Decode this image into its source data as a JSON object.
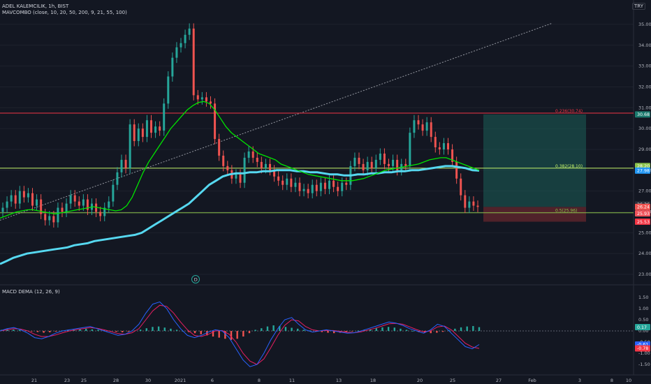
{
  "header": {
    "symbol_line": "ADEL KALEMCILIK, 1h, BIST",
    "ma_line": "MAVCOMBO (close, 10, 20, 50, 200, 9, 21, 55, 100)",
    "currency": "TRY"
  },
  "macd_label": "MACD DEMA (12, 26, 9)",
  "event_marker": "D",
  "x_ticks": [
    "21",
    "23",
    "25",
    "28",
    "30",
    "2021",
    "6",
    "8",
    "11",
    "13",
    "18",
    "20",
    "25",
    "27",
    "Feb",
    "3",
    "8",
    "10"
  ],
  "colors": {
    "background": "#131722",
    "up": "#26a69a",
    "down": "#ef5350",
    "ma_fast": "#00e600",
    "ma_slow": "#56d8f0",
    "fib_236": "#f23645",
    "fib_382": "#c6f56b",
    "fib_50": "#8bc34a",
    "macd_line": "#2962ff",
    "signal_line": "#e91e63"
  },
  "chart_data": [
    {
      "type": "candlestick",
      "title": "ADEL KALEMCILIK, 1h, BIST",
      "yaxis": {
        "ticks": [
          "35.00",
          "34.00",
          "33.00",
          "32.00",
          "31.00",
          "30.00",
          "29.00",
          "28.00",
          "27.00",
          "26.00",
          "25.00",
          "24.00",
          "23.00"
        ],
        "range": [
          22.6,
          35.5
        ]
      },
      "fib_levels": [
        {
          "label": "0.236(30.74)",
          "value": 30.74
        },
        {
          "label": "0.382(28.10)",
          "value": 28.1
        },
        {
          "label": "0.5(25.96)",
          "value": 25.96
        }
      ],
      "price_labels": [
        {
          "text": "30.68",
          "value": 30.68,
          "color": "#1b7a6e"
        },
        {
          "text": "28.20",
          "value": 28.2,
          "color": "#8bc34a"
        },
        {
          "text": "27.98",
          "value": 27.98,
          "color": "#2196f3"
        },
        {
          "text": "26.36",
          "value": 26.36,
          "color": "#2a2e39"
        },
        {
          "text": "26.24",
          "value": 26.24,
          "color": "#ef5350"
        },
        {
          "text": "25.93",
          "value": 25.93,
          "color": "#f0525a"
        },
        {
          "text": "25.53",
          "value": 25.53,
          "color": "#f23645"
        }
      ],
      "position": {
        "entry": 26.24,
        "target": 30.68,
        "stop": 25.53
      },
      "close_series": [
        26.2,
        26.5,
        26.8,
        26.4,
        27.0,
        26.7,
        26.9,
        26.3,
        26.6,
        25.9,
        25.6,
        25.8,
        25.5,
        26.2,
        26.0,
        26.4,
        26.8,
        26.5,
        26.3,
        26.6,
        26.1,
        26.4,
        26.0,
        25.8,
        26.2,
        26.5,
        27.3,
        27.9,
        28.5,
        28.1,
        30.2,
        29.4,
        30.0,
        29.6,
        30.4,
        29.8,
        30.1,
        29.9,
        31.2,
        32.5,
        33.4,
        33.9,
        34.1,
        34.5,
        34.8,
        31.6,
        31.4,
        31.5,
        31.3,
        31.2,
        29.5,
        28.7,
        28.2,
        28.0,
        27.6,
        27.8,
        27.4,
        28.6,
        28.9,
        28.6,
        28.4,
        28.1,
        28.3,
        28.0,
        27.7,
        27.5,
        27.3,
        27.6,
        27.2,
        27.4,
        27.0,
        27.1,
        26.9,
        27.3,
        27.0,
        27.4,
        27.1,
        27.5,
        27.2,
        27.0,
        27.4,
        27.3,
        28.2,
        28.6,
        28.3,
        28.0,
        28.4,
        28.1,
        28.5,
        28.8,
        28.3,
        28.2,
        28.5,
        28.0,
        28.3,
        28.2,
        29.8,
        30.4,
        30.2,
        29.9,
        30.3,
        29.6,
        29.1,
        29.0,
        29.3,
        29.0,
        28.4,
        27.6,
        26.8,
        26.2,
        26.5,
        26.3,
        26.24
      ],
      "ma_fast_series": [
        25.7,
        25.8,
        25.9,
        26.0,
        26.05,
        26.1,
        26.1,
        26.05,
        26.0,
        25.95,
        25.9,
        25.95,
        26.0,
        26.05,
        26.1,
        26.15,
        26.2,
        26.25,
        26.2,
        26.15,
        26.1,
        26.05,
        26.1,
        26.3,
        26.7,
        27.3,
        27.9,
        28.4,
        28.8,
        29.2,
        29.6,
        30.0,
        30.3,
        30.6,
        30.9,
        31.1,
        31.25,
        31.3,
        31.2,
        30.9,
        30.5,
        30.1,
        29.8,
        29.6,
        29.4,
        29.2,
        29.0,
        28.8,
        28.7,
        28.6,
        28.5,
        28.3,
        28.2,
        28.1,
        28.0,
        27.9,
        27.8,
        27.75,
        27.7,
        27.65,
        27.6,
        27.55,
        27.5,
        27.5,
        27.5,
        27.55,
        27.6,
        27.7,
        27.8,
        27.9,
        28.0,
        28.05,
        28.1,
        28.15,
        28.2,
        28.25,
        28.3,
        28.4,
        28.5,
        28.55,
        28.6,
        28.6,
        28.5,
        28.4,
        28.3,
        28.2,
        28.1,
        28.0
      ],
      "ma_slow_series": [
        23.5,
        23.65,
        23.8,
        23.9,
        24.0,
        24.05,
        24.1,
        24.15,
        24.2,
        24.25,
        24.3,
        24.4,
        24.45,
        24.5,
        24.6,
        24.65,
        24.7,
        24.75,
        24.8,
        24.85,
        24.9,
        25.0,
        25.2,
        25.4,
        25.6,
        25.8,
        26.0,
        26.2,
        26.4,
        26.7,
        27.0,
        27.3,
        27.5,
        27.7,
        27.8,
        27.85,
        27.85,
        27.9,
        27.9,
        27.95,
        27.95,
        28.0,
        28.0,
        28.0,
        27.95,
        27.95,
        27.9,
        27.9,
        27.85,
        27.8,
        27.8,
        27.75,
        27.75,
        27.8,
        27.8,
        27.85,
        27.85,
        27.9,
        27.9,
        27.95,
        27.95,
        28.0,
        28.0,
        28.05,
        28.1,
        28.15,
        28.2,
        28.2,
        28.15,
        28.1,
        28.0,
        27.98
      ]
    },
    {
      "type": "macd",
      "title": "MACD DEMA (12, 26, 9)",
      "yaxis": {
        "ticks": [
          "1.50",
          "1.00",
          "0.50",
          "0.00",
          "-0.50",
          "-1.00",
          "-1.50"
        ],
        "range": [
          -1.75,
          1.75
        ]
      },
      "value_labels": [
        {
          "text": "0.17",
          "value": 0.17,
          "color": "#26a69a"
        },
        {
          "text": "-0.61",
          "value": -0.61,
          "color": "#2962ff"
        },
        {
          "text": "-0.78",
          "value": -0.78,
          "color": "#f23645"
        }
      ],
      "histogram": [
        0.05,
        0.08,
        0.06,
        0.04,
        0.02,
        -0.02,
        -0.05,
        -0.08,
        -0.06,
        -0.03,
        0.02,
        0.05,
        0.06,
        0.08,
        0.1,
        0.07,
        0.05,
        0.03,
        -0.02,
        -0.04,
        -0.06,
        -0.03,
        0.02,
        0.06,
        0.12,
        0.18,
        0.2,
        0.15,
        0.1,
        0.05,
        0.0,
        -0.05,
        -0.1,
        -0.15,
        -0.2,
        -0.25,
        -0.3,
        -0.35,
        -0.4,
        -0.35,
        -0.25,
        -0.1,
        0.05,
        0.12,
        0.2,
        0.25,
        0.22,
        0.18,
        0.14,
        0.1,
        0.05,
        0.02,
        -0.02,
        -0.05,
        -0.08,
        -0.1,
        -0.08,
        -0.05,
        -0.02,
        0.02,
        0.05,
        0.08,
        0.12,
        0.16,
        0.18,
        0.15,
        0.1,
        0.05,
        0.0,
        -0.05,
        -0.08,
        -0.1,
        -0.08,
        -0.04,
        0.04,
        0.1,
        0.16,
        0.2,
        0.22,
        0.17
      ],
      "macd_line": [
        0.0,
        0.1,
        0.15,
        0.05,
        -0.1,
        -0.3,
        -0.35,
        -0.25,
        -0.1,
        0.0,
        0.05,
        0.1,
        0.15,
        0.2,
        0.1,
        0.0,
        -0.1,
        -0.2,
        -0.15,
        0.0,
        0.3,
        0.8,
        1.2,
        1.3,
        1.0,
        0.5,
        0.1,
        -0.2,
        -0.3,
        -0.2,
        -0.05,
        0.05,
        0.0,
        -0.3,
        -0.8,
        -1.3,
        -1.6,
        -1.5,
        -1.0,
        -0.4,
        0.1,
        0.5,
        0.6,
        0.3,
        0.05,
        -0.05,
        0.0,
        0.05,
        0.0,
        -0.05,
        -0.1,
        -0.08,
        0.0,
        0.1,
        0.2,
        0.3,
        0.4,
        0.35,
        0.25,
        0.1,
        0.0,
        -0.1,
        0.05,
        0.3,
        0.2,
        -0.1,
        -0.4,
        -0.7,
        -0.8,
        -0.61
      ],
      "signal_line": [
        0.0,
        0.05,
        0.1,
        0.08,
        0.0,
        -0.15,
        -0.25,
        -0.25,
        -0.18,
        -0.08,
        0.0,
        0.06,
        0.1,
        0.15,
        0.12,
        0.05,
        -0.03,
        -0.12,
        -0.15,
        -0.08,
        0.1,
        0.5,
        0.9,
        1.15,
        1.1,
        0.8,
        0.4,
        0.05,
        -0.2,
        -0.25,
        -0.15,
        0.0,
        0.02,
        -0.15,
        -0.5,
        -1.0,
        -1.35,
        -1.5,
        -1.25,
        -0.75,
        -0.2,
        0.25,
        0.5,
        0.45,
        0.2,
        0.05,
        0.0,
        0.02,
        0.02,
        -0.02,
        -0.06,
        -0.08,
        -0.04,
        0.04,
        0.12,
        0.22,
        0.32,
        0.34,
        0.3,
        0.18,
        0.06,
        -0.04,
        0.0,
        0.18,
        0.22,
        0.05,
        -0.25,
        -0.55,
        -0.72,
        -0.78
      ]
    }
  ]
}
